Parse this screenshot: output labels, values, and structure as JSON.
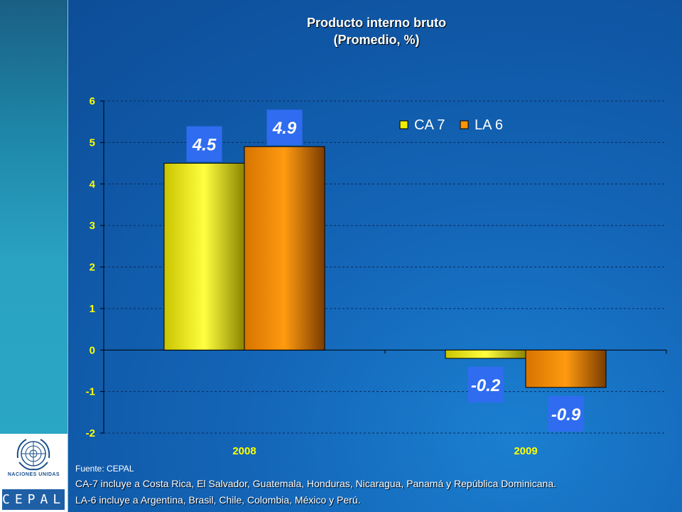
{
  "title_line1": "Producto interno bruto",
  "title_line2": "(Promedio, %)",
  "chart_data": {
    "type": "bar",
    "categories": [
      "2008",
      "2009"
    ],
    "series": [
      {
        "name": "CA 7",
        "values": [
          4.5,
          -0.2
        ],
        "labels": [
          "4.5",
          "-0.2"
        ],
        "color": "#f2ee00"
      },
      {
        "name": "LA 6",
        "values": [
          4.9,
          -0.9
        ],
        "labels": [
          "4.9",
          "-0.9"
        ],
        "color": "#ff9500"
      }
    ],
    "ylim": [
      -2,
      6
    ],
    "yticks": [
      "6",
      "5",
      "4",
      "3",
      "2",
      "1",
      "0",
      "-1",
      "-2"
    ],
    "grid": true,
    "legend_position": "top-right"
  },
  "colors": {
    "tick_label": "#ffff00",
    "data_label_box": "#2f6cf0",
    "grid": "#0a2a5a"
  },
  "footer": {
    "source": "Fuente: CEPAL",
    "note1": "CA-7 incluye a Costa Rica, El Salvador, Guatemala, Honduras, Nicaragua, Panamá y República Dominicana.",
    "note2": "LA-6 incluye a Argentina, Brasil, Chile, Colombia, México y Perú."
  },
  "logo": {
    "caption": "NACIONES UNIDAS",
    "text": "CEPAL"
  }
}
